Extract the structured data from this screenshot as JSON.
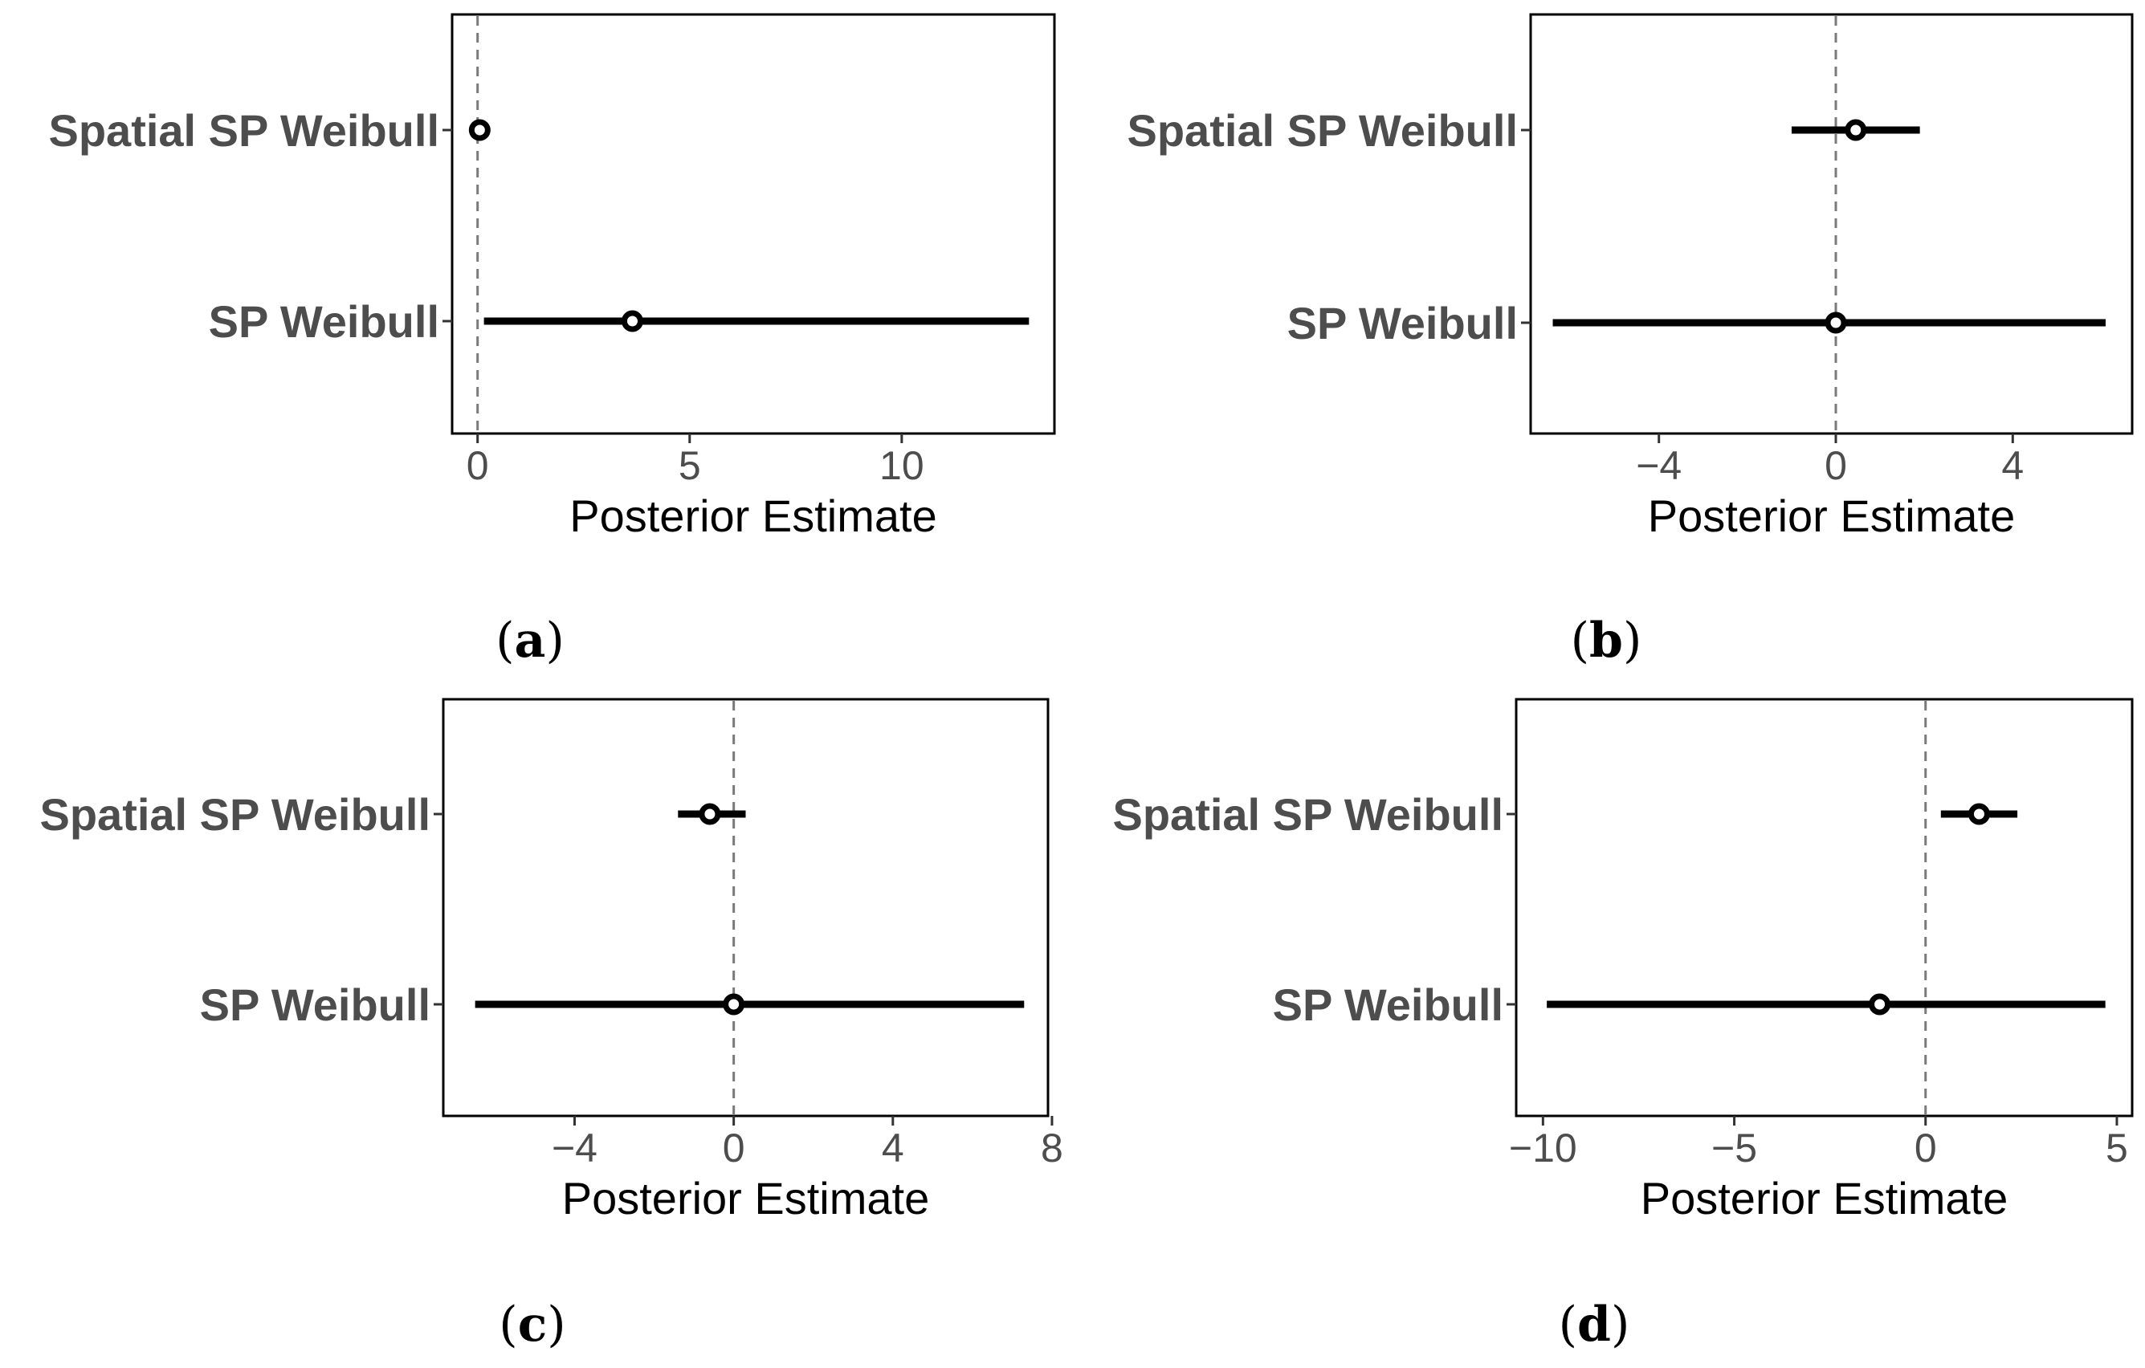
{
  "chart_data": [
    {
      "type": "interval",
      "panel_label": "(a)",
      "xlabel": "Posterior Estimate",
      "xlim": [
        -0.6,
        13.6
      ],
      "xticks": [
        0,
        5,
        10
      ],
      "xtick_labels": [
        "0",
        "5",
        "10"
      ],
      "reference_line": 0,
      "categories": [
        "Spatial SP Weibull",
        "SP Weibull"
      ],
      "estimates": [
        0.05,
        3.65
      ],
      "lower": [
        0.05,
        0.15
      ],
      "upper": [
        0.05,
        13.0
      ]
    },
    {
      "type": "interval",
      "panel_label": "(b)",
      "xlabel": "Posterior Estimate",
      "xlim": [
        -6.9,
        6.7
      ],
      "xticks": [
        -4,
        0,
        4
      ],
      "xtick_labels": [
        "−4",
        "0",
        "4"
      ],
      "reference_line": 0,
      "categories": [
        "Spatial SP Weibull",
        "SP Weibull"
      ],
      "estimates": [
        0.45,
        0.0
      ],
      "lower": [
        -1.0,
        -6.4
      ],
      "upper": [
        1.9,
        6.1
      ]
    },
    {
      "type": "interval",
      "panel_label": "(c)",
      "xlabel": "Posterior Estimate",
      "xlim": [
        -7.3,
        7.9
      ],
      "xticks": [
        -4,
        0,
        4,
        8
      ],
      "xtick_labels": [
        "−4",
        "0",
        "4",
        "8"
      ],
      "reference_line": 0,
      "categories": [
        "Spatial SP Weibull",
        "SP Weibull"
      ],
      "estimates": [
        -0.6,
        0.0
      ],
      "lower": [
        -1.4,
        -6.5
      ],
      "upper": [
        0.3,
        7.3
      ]
    },
    {
      "type": "interval",
      "panel_label": "(d)",
      "xlabel": "Posterior Estimate",
      "xlim": [
        -10.7,
        5.4
      ],
      "xticks": [
        -10,
        -5,
        0,
        5
      ],
      "xtick_labels": [
        "−10",
        "−5",
        "0",
        "5"
      ],
      "reference_line": 0,
      "categories": [
        "Spatial SP Weibull",
        "SP Weibull"
      ],
      "estimates": [
        1.4,
        -1.2
      ],
      "lower": [
        0.4,
        -9.9
      ],
      "upper": [
        2.4,
        4.7
      ]
    }
  ]
}
